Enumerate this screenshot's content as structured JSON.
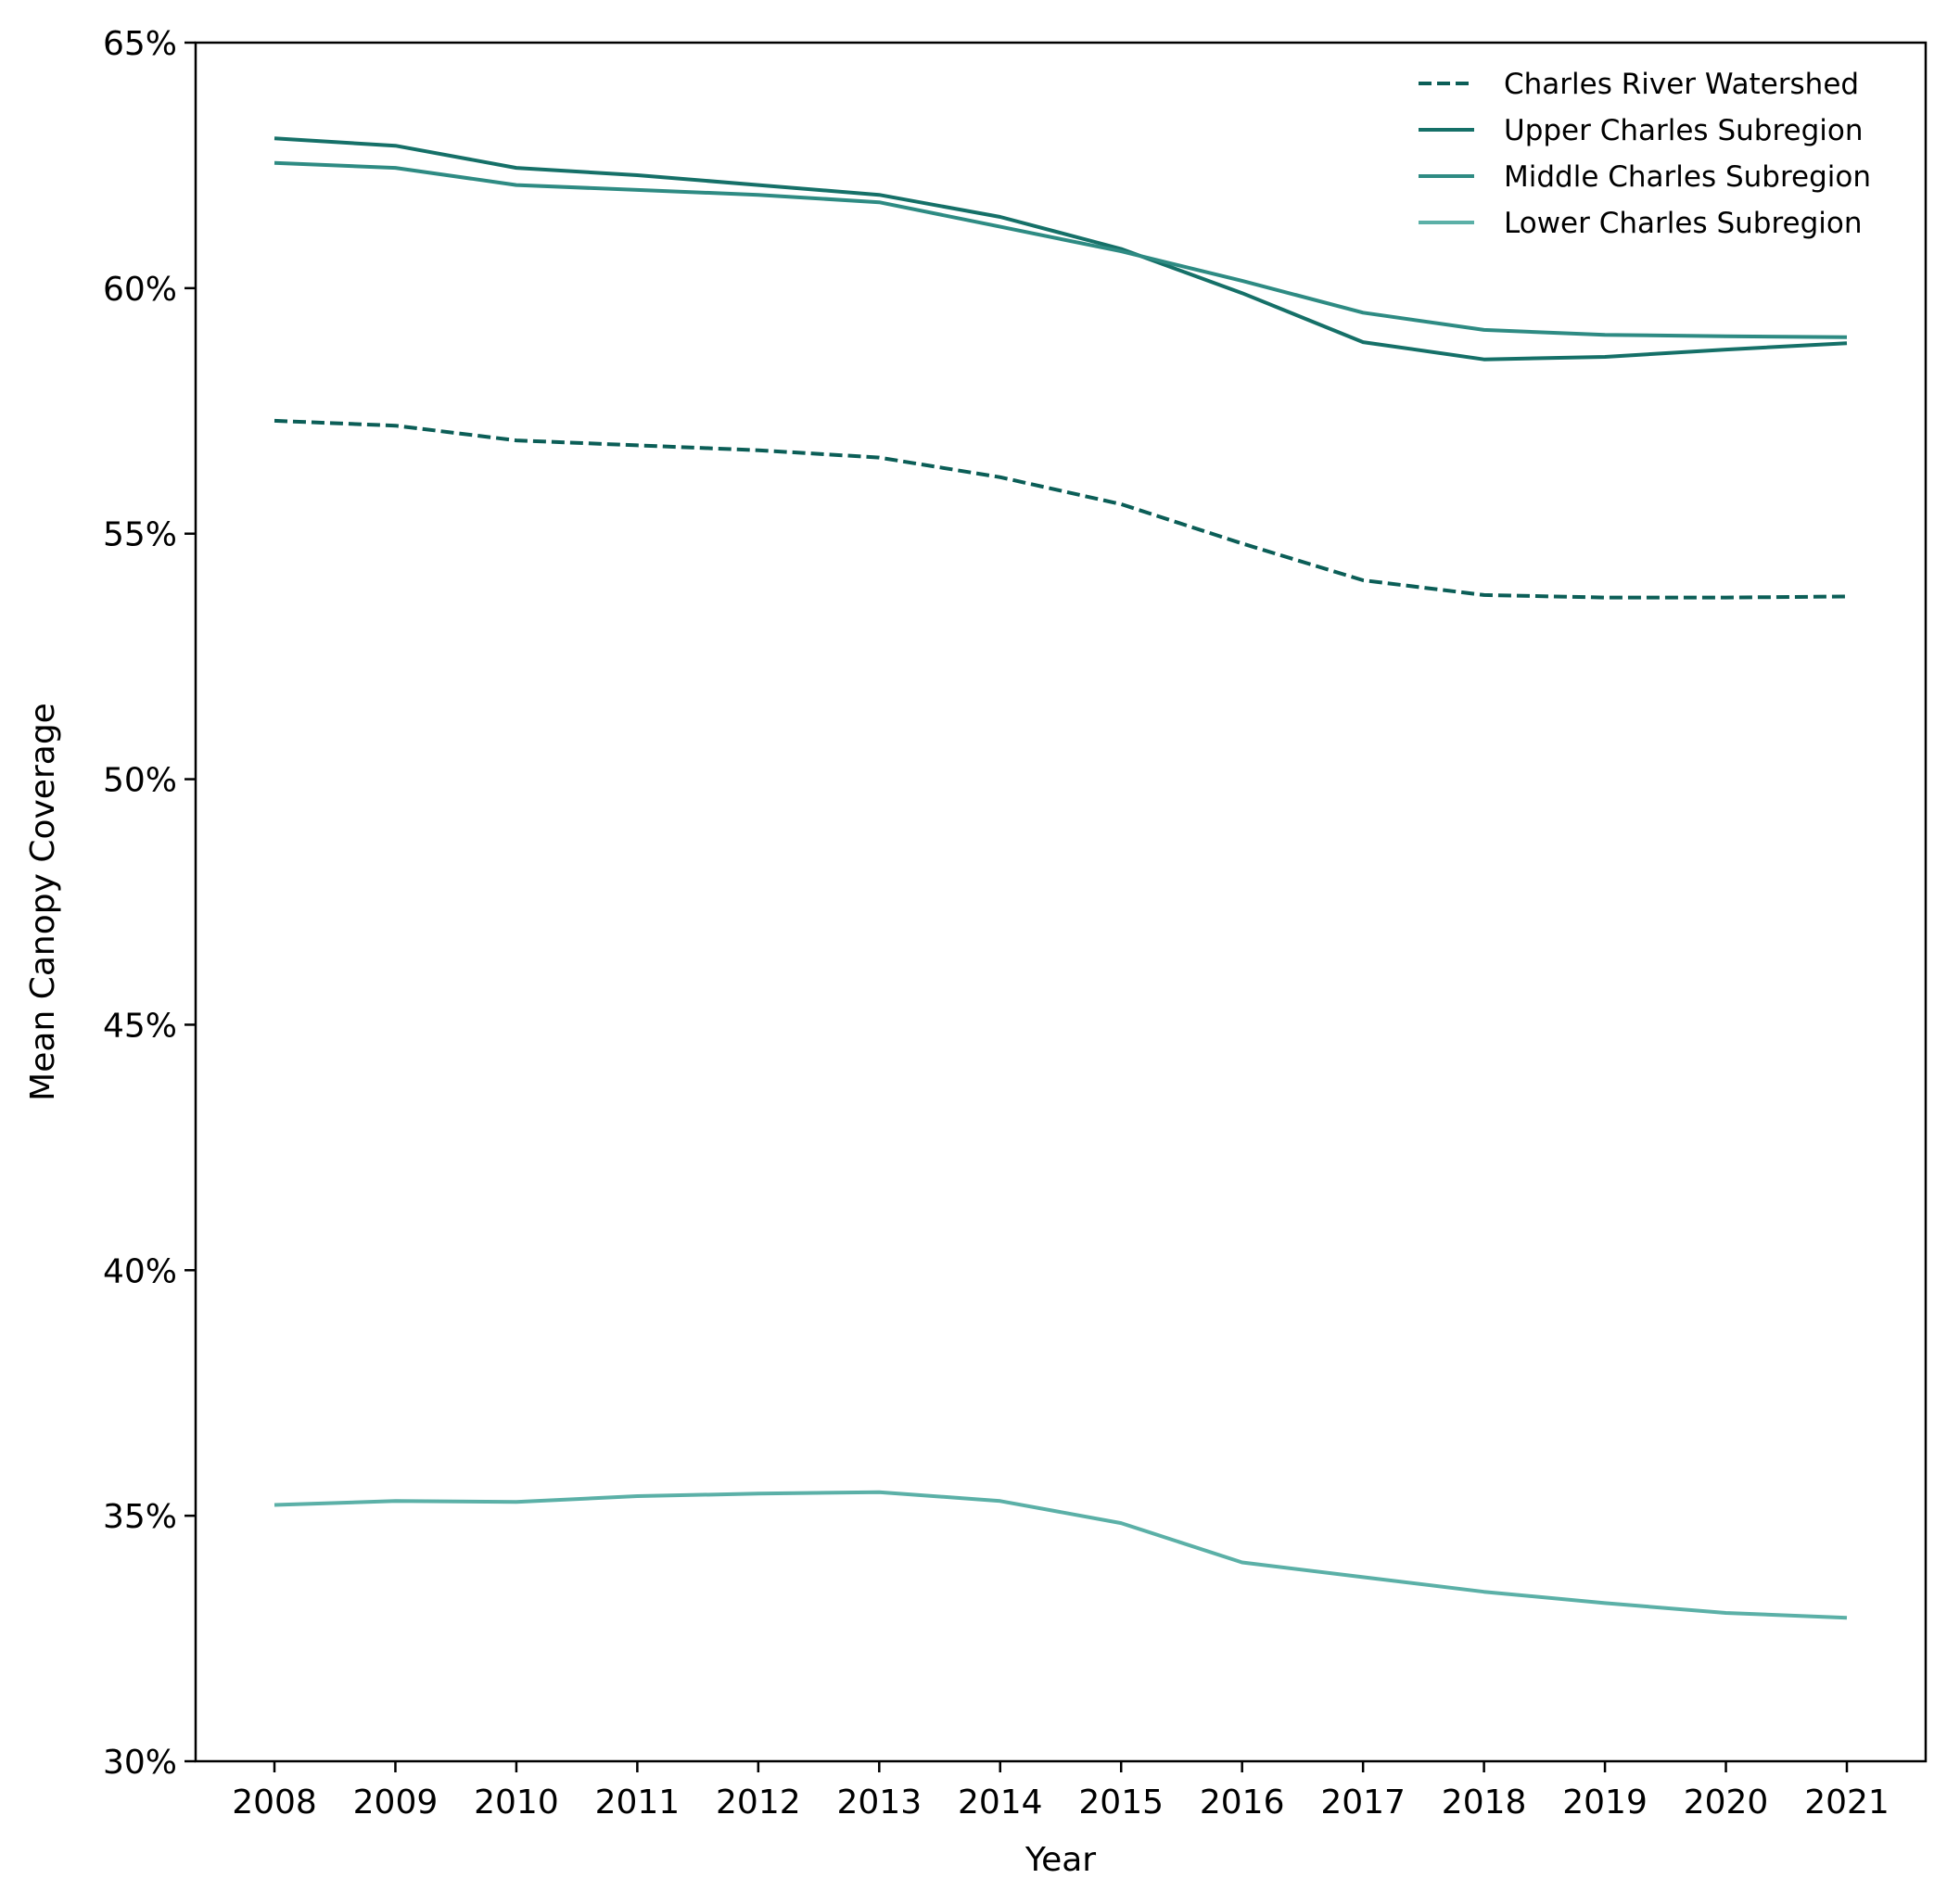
{
  "chart_data": {
    "type": "line",
    "title": "",
    "xlabel": "Year",
    "ylabel": "Mean Canopy Coverage",
    "x": [
      2008,
      2009,
      2010,
      2011,
      2012,
      2013,
      2014,
      2015,
      2016,
      2017,
      2018,
      2019,
      2020,
      2021
    ],
    "x_tick_labels": [
      "2008",
      "2009",
      "2010",
      "2011",
      "2012",
      "2013",
      "2014",
      "2015",
      "2016",
      "2017",
      "2018",
      "2019",
      "2020",
      "2021"
    ],
    "ylim": [
      30,
      65
    ],
    "y_ticks": [
      30,
      35,
      40,
      45,
      50,
      55,
      60,
      65
    ],
    "y_tick_labels": [
      "30%",
      "35%",
      "40%",
      "45%",
      "50%",
      "55%",
      "60%",
      "65%"
    ],
    "grid": false,
    "legend_position": "top-right",
    "series": [
      {
        "name": "Charles River Watershed",
        "color": "#0b5e57",
        "dashed": true,
        "values": [
          57.3,
          57.2,
          56.9,
          56.8,
          56.7,
          56.55,
          56.15,
          55.6,
          54.8,
          54.05,
          53.75,
          53.7,
          53.7,
          53.72
        ]
      },
      {
        "name": "Upper Charles Subregion",
        "color": "#157068",
        "dashed": false,
        "values": [
          63.05,
          62.9,
          62.45,
          62.3,
          62.1,
          61.9,
          61.45,
          60.8,
          59.9,
          58.9,
          58.55,
          58.6,
          58.75,
          58.88
        ]
      },
      {
        "name": "Middle Charles Subregion",
        "color": "#2e8b83",
        "dashed": false,
        "values": [
          62.55,
          62.45,
          62.1,
          62.0,
          61.9,
          61.75,
          61.25,
          60.75,
          60.15,
          59.5,
          59.15,
          59.05,
          59.02,
          59.0
        ]
      },
      {
        "name": "Lower Charles Subregion",
        "color": "#5bb0a7",
        "dashed": false,
        "values": [
          35.22,
          35.3,
          35.28,
          35.4,
          35.45,
          35.48,
          35.3,
          34.85,
          34.05,
          33.75,
          33.45,
          33.22,
          33.02,
          32.92
        ]
      }
    ]
  }
}
